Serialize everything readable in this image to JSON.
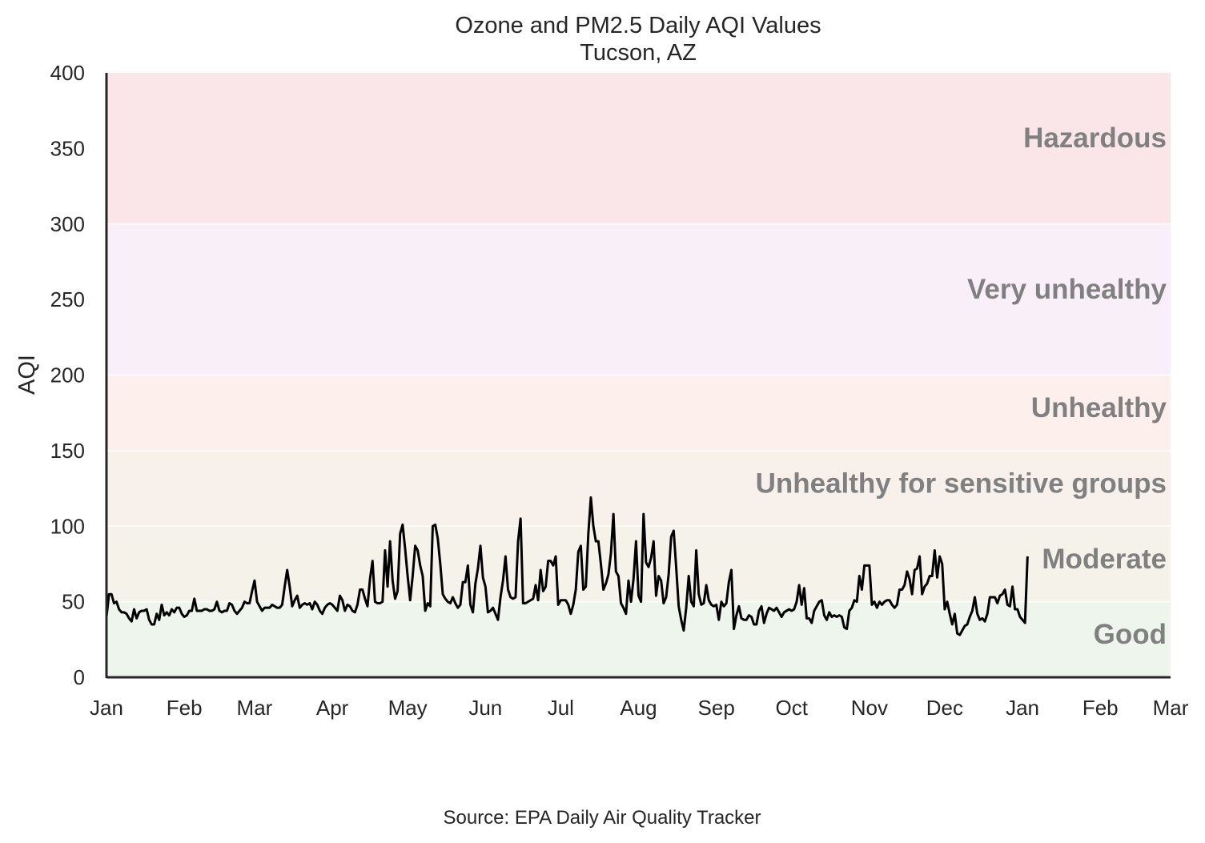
{
  "chart_data": {
    "type": "line",
    "title": "Ozone and PM2.5 Daily AQI Values",
    "subtitle": "Tucson, AZ",
    "xlabel": "",
    "ylabel": "AQI",
    "ylim": [
      0,
      400
    ],
    "yticks": [
      0,
      50,
      100,
      150,
      200,
      250,
      300,
      350,
      400
    ],
    "xlim": [
      "2021-01-01",
      "2022-03-01"
    ],
    "xticks": [
      "2021-01-01",
      "2021-02-01",
      "2021-03-01",
      "2021-04-01",
      "2021-05-01",
      "2021-06-01",
      "2021-07-01",
      "2021-08-01",
      "2021-09-01",
      "2021-10-01",
      "2021-11-01",
      "2021-12-01",
      "2022-01-01",
      "2022-02-01",
      "2022-03-01"
    ],
    "xtick_labels": [
      "Jan",
      "Feb",
      "Mar",
      "Apr",
      "May",
      "Jun",
      "Jul",
      "Aug",
      "Sep",
      "Oct",
      "Nov",
      "Dec",
      "Jan",
      "Feb",
      "Mar"
    ],
    "grid": false,
    "source": "Source: EPA Daily Air Quality Tracker",
    "bands": [
      {
        "label": "Good",
        "min": 0,
        "max": 50,
        "color": "#edf5ec"
      },
      {
        "label": "Moderate",
        "min": 50,
        "max": 100,
        "color": "#f5f2ea"
      },
      {
        "label": "Unhealthy for sensitive groups",
        "min": 100,
        "max": 150,
        "color": "#f8f0ea"
      },
      {
        "label": "Unhealthy",
        "min": 150,
        "max": 200,
        "color": "#fcefec"
      },
      {
        "label": "Very unhealthy",
        "min": 200,
        "max": 300,
        "color": "#f8eff9"
      },
      {
        "label": "Hazardous",
        "min": 300,
        "max": 400,
        "color": "#fae6e8"
      }
    ],
    "series": [
      {
        "line_color": "#000000",
        "x_start": "2021-01-01",
        "x_step": "1 day",
        "values": [
          40,
          55,
          55,
          49,
          50,
          45,
          43,
          43,
          42,
          39,
          37,
          45,
          39,
          43,
          44,
          44,
          45,
          38,
          35,
          35,
          42,
          38,
          48,
          41,
          43,
          41,
          45,
          43,
          46,
          46,
          42,
          40,
          41,
          44,
          44,
          52,
          44,
          44,
          44,
          45,
          45,
          44,
          44,
          45,
          50,
          44,
          43,
          44,
          44,
          49,
          48,
          44,
          42,
          44,
          46,
          50,
          49,
          49,
          57,
          64,
          50,
          47,
          44,
          46,
          46,
          46,
          48,
          47,
          46,
          46,
          48,
          60,
          71,
          60,
          47,
          51,
          54,
          46,
          48,
          49,
          48,
          49,
          45,
          50,
          48,
          44,
          42,
          46,
          48,
          49,
          48,
          46,
          44,
          54,
          51,
          44,
          48,
          47,
          44,
          43,
          48,
          58,
          58,
          52,
          47,
          65,
          77,
          50,
          49,
          49,
          50,
          84,
          60,
          90,
          64,
          52,
          57,
          95,
          101,
          85,
          67,
          51,
          67,
          87,
          84,
          74,
          67,
          44,
          49,
          47,
          100,
          101,
          92,
          75,
          55,
          52,
          50,
          49,
          53,
          49,
          46,
          48,
          63,
          63,
          74,
          48,
          43,
          62,
          72,
          87,
          66,
          60,
          43,
          44,
          46,
          42,
          38,
          53,
          64,
          80,
          58,
          53,
          52,
          53,
          90,
          105,
          49,
          49,
          50,
          51,
          52,
          61,
          51,
          71,
          57,
          60,
          77,
          77,
          74,
          80,
          48,
          51,
          51,
          51,
          48,
          42,
          48,
          58,
          83,
          87,
          58,
          60,
          95,
          119,
          100,
          90,
          90,
          75,
          58,
          62,
          68,
          82,
          108,
          70,
          67,
          49,
          46,
          42,
          64,
          50,
          65,
          90,
          54,
          50,
          108,
          76,
          73,
          79,
          90,
          54,
          67,
          64,
          49,
          53,
          68,
          93,
          97,
          73,
          47,
          38,
          31,
          46,
          67,
          50,
          47,
          84,
          55,
          48,
          49,
          61,
          51,
          48,
          47,
          48,
          38,
          50,
          47,
          49,
          63,
          71,
          32,
          41,
          47,
          39,
          38,
          38,
          41,
          40,
          35,
          35,
          44,
          47,
          36,
          42,
          46,
          45,
          44,
          46,
          43,
          40,
          43,
          44,
          45,
          44,
          45,
          50,
          61,
          48,
          59,
          39,
          39,
          36,
          44,
          47,
          50,
          51,
          41,
          38,
          43,
          40,
          41,
          40,
          41,
          40,
          33,
          32,
          44,
          46,
          51,
          50,
          67,
          58,
          74,
          74,
          74,
          48,
          50,
          46,
          50,
          48,
          50,
          51,
          51,
          48,
          46,
          48,
          58,
          58,
          61,
          70,
          65,
          55,
          71,
          72,
          80,
          55,
          60,
          62,
          67,
          67,
          84,
          66,
          80,
          75,
          45,
          50,
          42,
          35,
          42,
          29,
          28,
          31,
          34,
          35,
          40,
          44,
          53,
          42,
          38,
          39,
          37,
          42,
          53,
          53,
          53,
          49,
          54,
          55,
          58,
          48,
          47,
          60,
          45,
          45,
          40,
          38,
          36,
          80
        ]
      }
    ]
  }
}
